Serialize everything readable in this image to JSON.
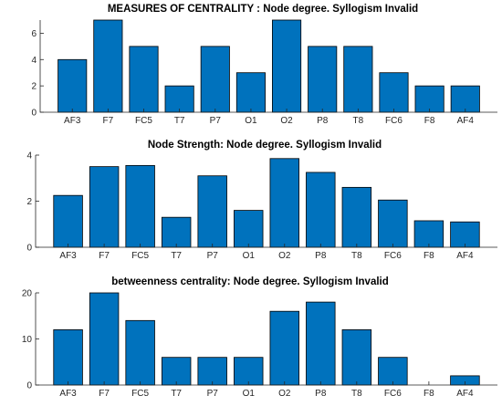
{
  "chart_data": [
    {
      "type": "bar",
      "title": "MEASURES OF CENTRALITY : Node degree. Syllogism  Invalid",
      "categories": [
        "AF3",
        "F7",
        "FC5",
        "T7",
        "P7",
        "O1",
        "O2",
        "P8",
        "T8",
        "FC6",
        "F8",
        "AF4"
      ],
      "values": [
        4,
        7,
        5,
        2,
        5,
        3,
        7,
        5,
        5,
        3,
        2,
        2
      ],
      "ylim": [
        0,
        7
      ],
      "yticks": [
        0,
        2,
        4,
        6
      ],
      "xlabel": "",
      "ylabel": "",
      "color": "#0072BD"
    },
    {
      "type": "bar",
      "title": "Node Strength: Node degree. Syllogism  Invalid",
      "categories": [
        "AF3",
        "F7",
        "FC5",
        "T7",
        "P7",
        "O1",
        "O2",
        "P8",
        "T8",
        "FC6",
        "F8",
        "AF4"
      ],
      "values": [
        2.25,
        3.5,
        3.55,
        1.3,
        3.1,
        1.6,
        3.85,
        3.25,
        2.6,
        2.05,
        1.15,
        1.1
      ],
      "ylim": [
        0,
        4
      ],
      "yticks": [
        0,
        2,
        4
      ],
      "xlabel": "",
      "ylabel": "",
      "color": "#0072BD"
    },
    {
      "type": "bar",
      "title": "betweenness centrality: Node degree. Syllogism  Invalid",
      "categories": [
        "AF3",
        "F7",
        "FC5",
        "T7",
        "P7",
        "O1",
        "O2",
        "P8",
        "T8",
        "FC6",
        "F8",
        "AF4"
      ],
      "values": [
        12,
        20,
        14,
        6,
        6,
        6,
        16,
        18,
        12,
        6,
        0,
        2
      ],
      "ylim": [
        0,
        20
      ],
      "yticks": [
        0,
        10,
        20
      ],
      "xlabel": "",
      "ylabel": "",
      "color": "#0072BD"
    }
  ]
}
